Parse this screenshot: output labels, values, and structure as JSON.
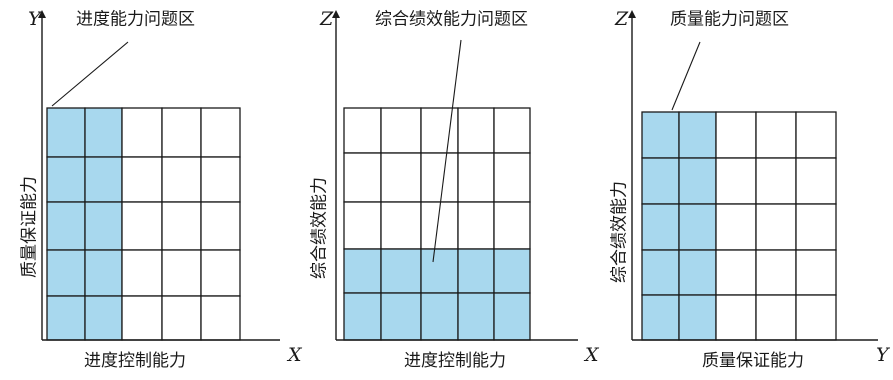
{
  "colors": {
    "highlight": "#a8d8ee",
    "empty": "#ffffff",
    "line": "#1a1a1a"
  },
  "diagrams": [
    {
      "id": "schedule-quality",
      "vertical_axis": "Y",
      "horizontal_axis": "X",
      "vertical_label": "质量保证能力",
      "horizontal_label": "进度控制能力",
      "zone_label": "进度能力问题区",
      "columns": 5,
      "rows": 5,
      "highlight": "left-2-columns"
    },
    {
      "id": "schedule-performance",
      "vertical_axis": "Z",
      "horizontal_axis": "X",
      "vertical_label": "综合绩效能力",
      "horizontal_label": "进度控制能力",
      "zone_label": "综合绩效能力问题区",
      "columns": 5,
      "rows": 5,
      "highlight": "bottom-2-rows"
    },
    {
      "id": "quality-performance",
      "vertical_axis": "Z",
      "horizontal_axis": "Y",
      "vertical_label": "综合绩效能力",
      "horizontal_label": "质量保证能力",
      "zone_label": "质量能力问题区",
      "columns": 5,
      "rows": 5,
      "highlight": "left-2-columns"
    }
  ]
}
